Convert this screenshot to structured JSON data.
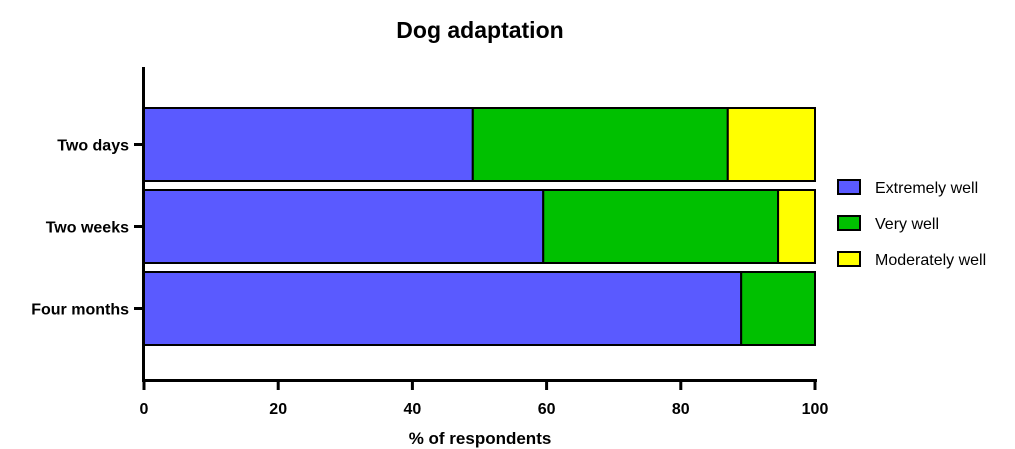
{
  "chart_data": {
    "type": "bar",
    "orientation": "horizontal",
    "stacked": true,
    "title": "Dog adaptation",
    "xlabel": "% of respondents",
    "ylabel": "",
    "xlim": [
      0,
      100
    ],
    "xticks": [
      "0",
      "20",
      "40",
      "60",
      "80",
      "100"
    ],
    "categories": [
      "Two days",
      "Two weeks",
      "Four months"
    ],
    "series": [
      {
        "name": "Extremely well",
        "color": "#5a5aff",
        "values": [
          49,
          59.5,
          89
        ]
      },
      {
        "name": "Very well",
        "color": "#00c000",
        "values": [
          38,
          35,
          11
        ]
      },
      {
        "name": "Moderately well",
        "color": "#ffff00",
        "values": [
          13,
          5.5,
          0
        ]
      }
    ],
    "legend_position": "right",
    "grid": false
  }
}
